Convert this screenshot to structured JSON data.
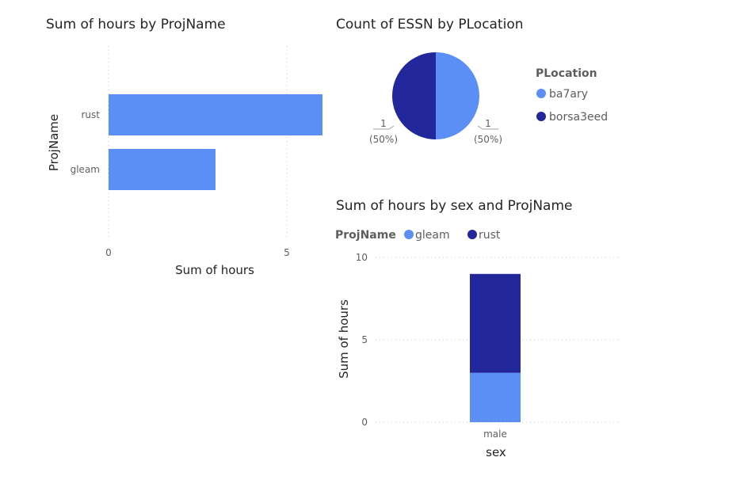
{
  "colors": {
    "light_blue": "#5B8FF5",
    "dark_blue": "#22279B",
    "grid": "#C8C6C4"
  },
  "chart_data": [
    {
      "type": "bar",
      "title": "Sum of hours by ProjName",
      "orientation": "horizontal",
      "categories": [
        "rust",
        "gleam"
      ],
      "values": [
        6,
        3
      ],
      "xlabel": "Sum of hours",
      "ylabel": "ProjName",
      "xlim": [
        0,
        6
      ],
      "xticks": [
        "0",
        "5"
      ],
      "grid": true
    },
    {
      "type": "pie",
      "title": "Count of ESSN by PLocation",
      "legend_title": "PLocation",
      "legend_placement": "right",
      "slices": [
        {
          "label": "ba7ary",
          "value": 1,
          "value_label": "1",
          "percent_label": "(50%)",
          "color": "#5B8FF5"
        },
        {
          "label": "borsa3eed",
          "value": 1,
          "value_label": "1",
          "percent_label": "(50%)",
          "color": "#22279B"
        }
      ]
    },
    {
      "type": "bar",
      "stacked": true,
      "title": "Sum of hours by sex and ProjName",
      "legend_title": "ProjName",
      "legend_placement": "top-left",
      "categories": [
        "male"
      ],
      "series": [
        {
          "name": "gleam",
          "values": [
            3
          ],
          "color": "#5B8FF5"
        },
        {
          "name": "rust",
          "values": [
            6
          ],
          "color": "#22279B"
        }
      ],
      "xlabel": "sex",
      "ylabel": "Sum of hours",
      "ylim": [
        0,
        10
      ],
      "yticks": [
        "0",
        "5",
        "10"
      ],
      "grid": true
    }
  ]
}
